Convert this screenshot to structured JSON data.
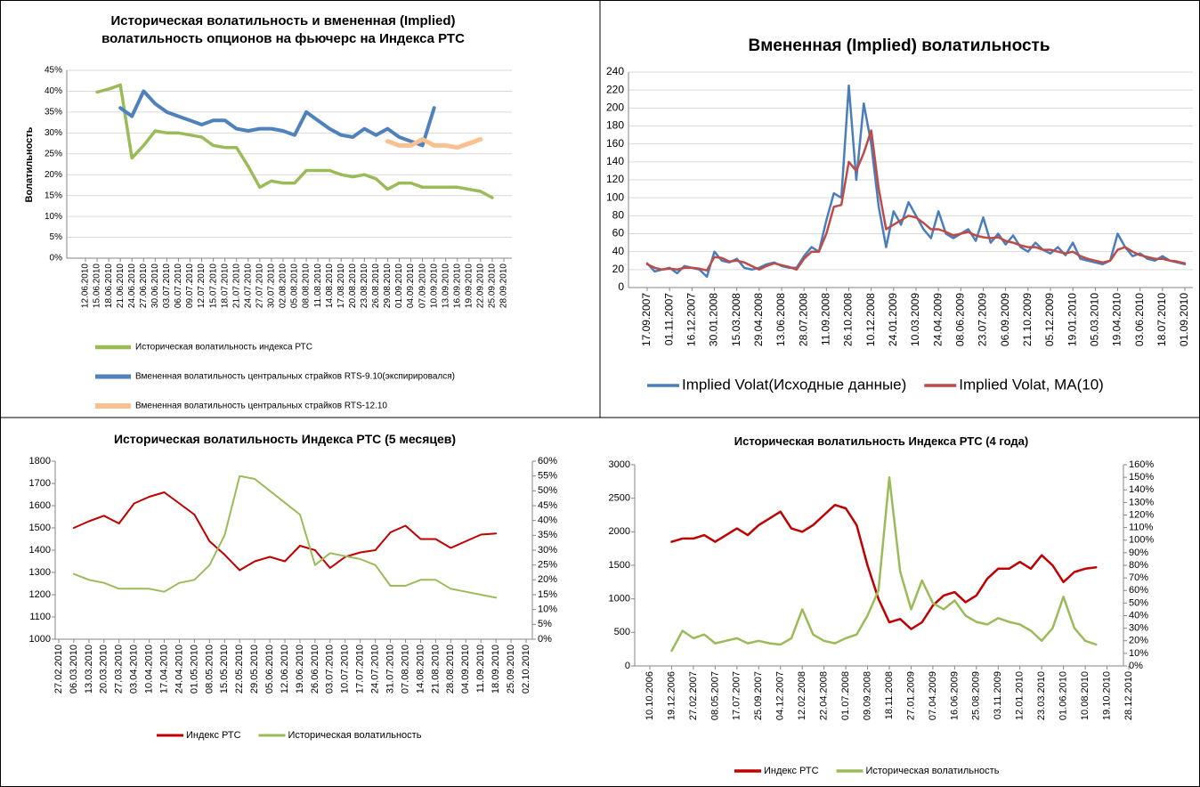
{
  "chart_data": [
    {
      "type": "line",
      "title": "Историческая волатильность и вмененная (Implied) волатильность опционов на фьючерс на Индекса РТС",
      "y_label": "Волатильность",
      "grid": true,
      "legend": "bottom",
      "categories": [
        "12.06.2010",
        "15.06.2010",
        "18.06.2010",
        "21.06.2010",
        "24.06.2010",
        "27.06.2010",
        "30.06.2010",
        "03.07.2010",
        "06.07.2010",
        "09.07.2010",
        "12.07.2010",
        "15.07.2010",
        "18.07.2010",
        "21.07.2010",
        "24.07.2010",
        "27.07.2010",
        "30.07.2010",
        "02.08.2010",
        "05.08.2010",
        "08.08.2010",
        "11.08.2010",
        "14.08.2010",
        "17.08.2010",
        "20.08.2010",
        "23.08.2010",
        "26.08.2010",
        "29.08.2010",
        "01.09.2010",
        "04.09.2010",
        "07.09.2010",
        "10.09.2010",
        "13.09.2010",
        "16.09.2010",
        "19.09.2010",
        "22.09.2010",
        "25.09.2010",
        "28.09.2010"
      ],
      "ylim": [
        0,
        45
      ],
      "yticks": [
        {
          "value": 0,
          "label": "0%"
        },
        {
          "value": 5,
          "label": "5%"
        },
        {
          "value": 10,
          "label": "10%"
        },
        {
          "value": 15,
          "label": "15%"
        },
        {
          "value": 20,
          "label": "20%"
        },
        {
          "value": 25,
          "label": "25%"
        },
        {
          "value": 30,
          "label": "30%"
        },
        {
          "value": 35,
          "label": "35%"
        },
        {
          "value": 40,
          "label": "40%"
        },
        {
          "value": 45,
          "label": "45%"
        }
      ],
      "series": [
        {
          "name": "Историческая волатильность индекса РТС",
          "color": "#9bbb59",
          "values": [
            null,
            39.8,
            40.5,
            41.5,
            24,
            27,
            30.5,
            30,
            30,
            29.5,
            29,
            27,
            26.5,
            26.5,
            22,
            17,
            18.5,
            18,
            18,
            21,
            21,
            21,
            20,
            19.5,
            20,
            19,
            16.5,
            18,
            18,
            17,
            17,
            17,
            17,
            16.5,
            16,
            14.5,
            null
          ]
        },
        {
          "name": "Вмененная волатильность центральных страйков  RTS-9.10(экспирировался)",
          "color": "#4f81bd",
          "values": [
            null,
            null,
            null,
            36,
            34,
            40,
            37,
            35,
            34,
            33,
            32,
            33,
            33,
            31,
            30.5,
            31,
            31,
            30.5,
            29.5,
            35,
            33,
            31,
            29.5,
            29,
            31,
            29.5,
            31,
            29,
            28,
            27,
            36,
            null,
            null,
            null,
            null,
            null,
            null
          ]
        },
        {
          "name": "Вмененная волатильность центральных страйков  RTS-12.10",
          "color": "#fac090",
          "values": [
            null,
            null,
            null,
            null,
            null,
            null,
            null,
            null,
            null,
            null,
            null,
            null,
            null,
            null,
            null,
            null,
            null,
            null,
            null,
            null,
            null,
            null,
            null,
            null,
            null,
            null,
            28,
            27,
            27,
            28.5,
            27,
            27,
            26.5,
            27.5,
            28.5,
            null,
            null
          ]
        }
      ]
    },
    {
      "type": "line",
      "title": "Вмененная (Implied) волатильность",
      "grid": true,
      "legend": "bottom",
      "categories": [
        "17.09.2007",
        null,
        null,
        "01.11.2007",
        null,
        null,
        "16.12.2007",
        null,
        null,
        "30.01.2008",
        null,
        null,
        "15.03.2008",
        null,
        null,
        "29.04.2008",
        null,
        null,
        "13.06.2008",
        null,
        null,
        "28.07.2008",
        null,
        null,
        "11.09.2008",
        null,
        null,
        "26.10.2008",
        null,
        null,
        "10.12.2008",
        null,
        null,
        "24.01.2009",
        null,
        null,
        "10.03.2009",
        null,
        null,
        "24.04.2009",
        null,
        null,
        "08.06.2009",
        null,
        null,
        "23.07.2009",
        null,
        null,
        "06.09.2009",
        null,
        null,
        "21.10.2009",
        null,
        null,
        "05.12.2009",
        null,
        null,
        "19.01.2010",
        null,
        null,
        "05.03.2010",
        null,
        null,
        "19.04.2010",
        null,
        null,
        "03.06.2010",
        null,
        null,
        "18.07.2010",
        null,
        null,
        "01.09.2010"
      ],
      "ylim": [
        0,
        240
      ],
      "yticks": [
        0,
        20,
        40,
        60,
        80,
        100,
        120,
        140,
        160,
        180,
        200,
        220,
        240
      ],
      "series": [
        {
          "name": "Implied Volat(Исходные данные)",
          "color": "#4a7ebb",
          "values": [
            27,
            18,
            20,
            22,
            16,
            24,
            22,
            20,
            12,
            40,
            30,
            28,
            32,
            22,
            20,
            22,
            26,
            28,
            24,
            22,
            22,
            35,
            45,
            40,
            75,
            105,
            100,
            225,
            120,
            205,
            160,
            90,
            45,
            85,
            70,
            95,
            80,
            65,
            55,
            85,
            60,
            55,
            60,
            65,
            52,
            78,
            50,
            60,
            48,
            58,
            45,
            40,
            50,
            42,
            38,
            45,
            36,
            50,
            32,
            30,
            28,
            26,
            30,
            60,
            45,
            35,
            38,
            32,
            30,
            35,
            30,
            28,
            26
          ]
        },
        {
          "name": "Implied Volat, MA(10)",
          "color": "#be4b48",
          "values": [
            26,
            22,
            20,
            21,
            20,
            22,
            22,
            21,
            19,
            34,
            33,
            29,
            30,
            28,
            24,
            20,
            24,
            27,
            25,
            23,
            20,
            32,
            40,
            40,
            60,
            90,
            92,
            140,
            130,
            150,
            175,
            110,
            65,
            70,
            75,
            80,
            78,
            72,
            65,
            65,
            62,
            58,
            60,
            62,
            58,
            56,
            55,
            56,
            52,
            50,
            47,
            45,
            45,
            42,
            42,
            40,
            38,
            40,
            35,
            32,
            30,
            28,
            30,
            42,
            45,
            40,
            36,
            34,
            32,
            32,
            30,
            29,
            27
          ]
        }
      ]
    },
    {
      "type": "line",
      "title": "Историческая волатильность  Индекса РТС (5 месяцев)",
      "grid": false,
      "legend": "bottom",
      "categories": [
        "27.02.2010",
        "06.03.2010",
        "13.03.2010",
        "20.03.2010",
        "27.03.2010",
        "03.04.2010",
        "10.04.2010",
        "17.04.2010",
        "24.04.2010",
        "01.05.2010",
        "08.05.2010",
        "15.05.2010",
        "22.05.2010",
        "29.05.2010",
        "05.06.2010",
        "12.06.2010",
        "19.06.2010",
        "26.06.2010",
        "03.07.2010",
        "10.07.2010",
        "17.07.2010",
        "24.07.2010",
        "31.07.2010",
        "07.08.2010",
        "14.08.2010",
        "21.08.2010",
        "28.08.2010",
        "04.09.2010",
        "11.09.2010",
        "18.09.2010",
        "25.09.2010",
        "02.10.2010"
      ],
      "ylim": [
        1000,
        1800
      ],
      "yticks": [
        1000,
        1100,
        1200,
        1300,
        1400,
        1500,
        1600,
        1700,
        1800
      ],
      "y2lim": [
        0,
        60
      ],
      "y2ticks": [
        {
          "value": 0,
          "label": "0%"
        },
        {
          "value": 5,
          "label": "5%"
        },
        {
          "value": 10,
          "label": "10%"
        },
        {
          "value": 15,
          "label": "15%"
        },
        {
          "value": 20,
          "label": "20%"
        },
        {
          "value": 25,
          "label": "25%"
        },
        {
          "value": 30,
          "label": "30%"
        },
        {
          "value": 35,
          "label": "35%"
        },
        {
          "value": 40,
          "label": "40%"
        },
        {
          "value": 45,
          "label": "45%"
        },
        {
          "value": 50,
          "label": "50%"
        },
        {
          "value": 55,
          "label": "55%"
        },
        {
          "value": 60,
          "label": "60%"
        }
      ],
      "series": [
        {
          "name": "Индекс РТС",
          "color": "#c00000",
          "values": [
            null,
            1500,
            1530,
            1555,
            1520,
            1610,
            1640,
            1660,
            1610,
            1560,
            1440,
            1380,
            1310,
            1350,
            1370,
            1350,
            1420,
            1400,
            1320,
            1370,
            1390,
            1400,
            1480,
            1510,
            1450,
            1450,
            1410,
            1440,
            1470,
            1475,
            null,
            null
          ]
        },
        {
          "name": "Историческая волатильность",
          "color": "#9bbb59",
          "axis": "y2",
          "values": [
            null,
            22,
            20,
            19,
            17,
            17,
            17,
            16,
            19,
            20,
            25,
            35,
            55,
            54,
            50,
            46,
            42,
            25,
            29,
            28,
            27,
            25,
            18,
            18,
            20,
            20,
            17,
            16,
            15,
            14,
            null,
            null
          ]
        }
      ]
    },
    {
      "type": "line",
      "title": "Историческая волатильность Индекса РТС  (4 года)",
      "grid": false,
      "legend": "bottom",
      "categories": [
        "10.10.2006",
        null,
        "19.12.2006",
        null,
        "27.02.2007",
        null,
        "08.05.2007",
        null,
        "17.07.2007",
        null,
        "25.09.2007",
        null,
        "04.12.2007",
        null,
        "12.02.2008",
        null,
        "22.04.2008",
        null,
        "01.07.2008",
        null,
        "09.09.2008",
        null,
        "18.11.2008",
        null,
        "27.01.2009",
        null,
        "07.04.2009",
        null,
        "16.06.2009",
        null,
        "25.08.2009",
        null,
        "03.11.2009",
        null,
        "12.01.2010",
        null,
        "23.03.2010",
        null,
        "01.06.2010",
        null,
        "10.08.2010",
        null,
        "19.10.2010",
        null,
        "28.12.2010"
      ],
      "ylim": [
        0,
        3000
      ],
      "yticks": [
        0,
        500,
        1000,
        1500,
        2000,
        2500,
        3000
      ],
      "y2lim": [
        0,
        160
      ],
      "y2ticks": [
        {
          "value": 0,
          "label": "0%"
        },
        {
          "value": 10,
          "label": "10%"
        },
        {
          "value": 20,
          "label": "20%"
        },
        {
          "value": 30,
          "label": "30%"
        },
        {
          "value": 40,
          "label": "40%"
        },
        {
          "value": 50,
          "label": "50%"
        },
        {
          "value": 60,
          "label": "60%"
        },
        {
          "value": 70,
          "label": "70%"
        },
        {
          "value": 80,
          "label": "80%"
        },
        {
          "value": 90,
          "label": "90%"
        },
        {
          "value": 100,
          "label": "100%"
        },
        {
          "value": 110,
          "label": "110%"
        },
        {
          "value": 120,
          "label": "120%"
        },
        {
          "value": 130,
          "label": "130%"
        },
        {
          "value": 140,
          "label": "140%"
        },
        {
          "value": 150,
          "label": "150%"
        },
        {
          "value": 160,
          "label": "160%"
        }
      ],
      "series": [
        {
          "name": "Индекс РТС",
          "color": "#c00000",
          "values": [
            null,
            null,
            1850,
            1900,
            1900,
            1950,
            1850,
            1950,
            2050,
            1950,
            2100,
            2200,
            2300,
            2050,
            2000,
            2100,
            2250,
            2400,
            2350,
            2100,
            1500,
            1000,
            650,
            700,
            550,
            650,
            900,
            1050,
            1100,
            950,
            1050,
            1300,
            1450,
            1450,
            1550,
            1450,
            1650,
            1500,
            1250,
            1400,
            1450,
            1470,
            null,
            null,
            null
          ]
        },
        {
          "name": "Историческая волатильность",
          "color": "#9bbb59",
          "axis": "y2",
          "values": [
            null,
            null,
            12,
            28,
            22,
            25,
            18,
            20,
            22,
            18,
            20,
            18,
            17,
            22,
            45,
            25,
            20,
            18,
            22,
            25,
            40,
            60,
            150,
            75,
            45,
            68,
            50,
            45,
            52,
            40,
            35,
            33,
            38,
            35,
            33,
            28,
            20,
            30,
            55,
            30,
            20,
            17,
            null,
            null,
            null
          ]
        }
      ]
    }
  ]
}
